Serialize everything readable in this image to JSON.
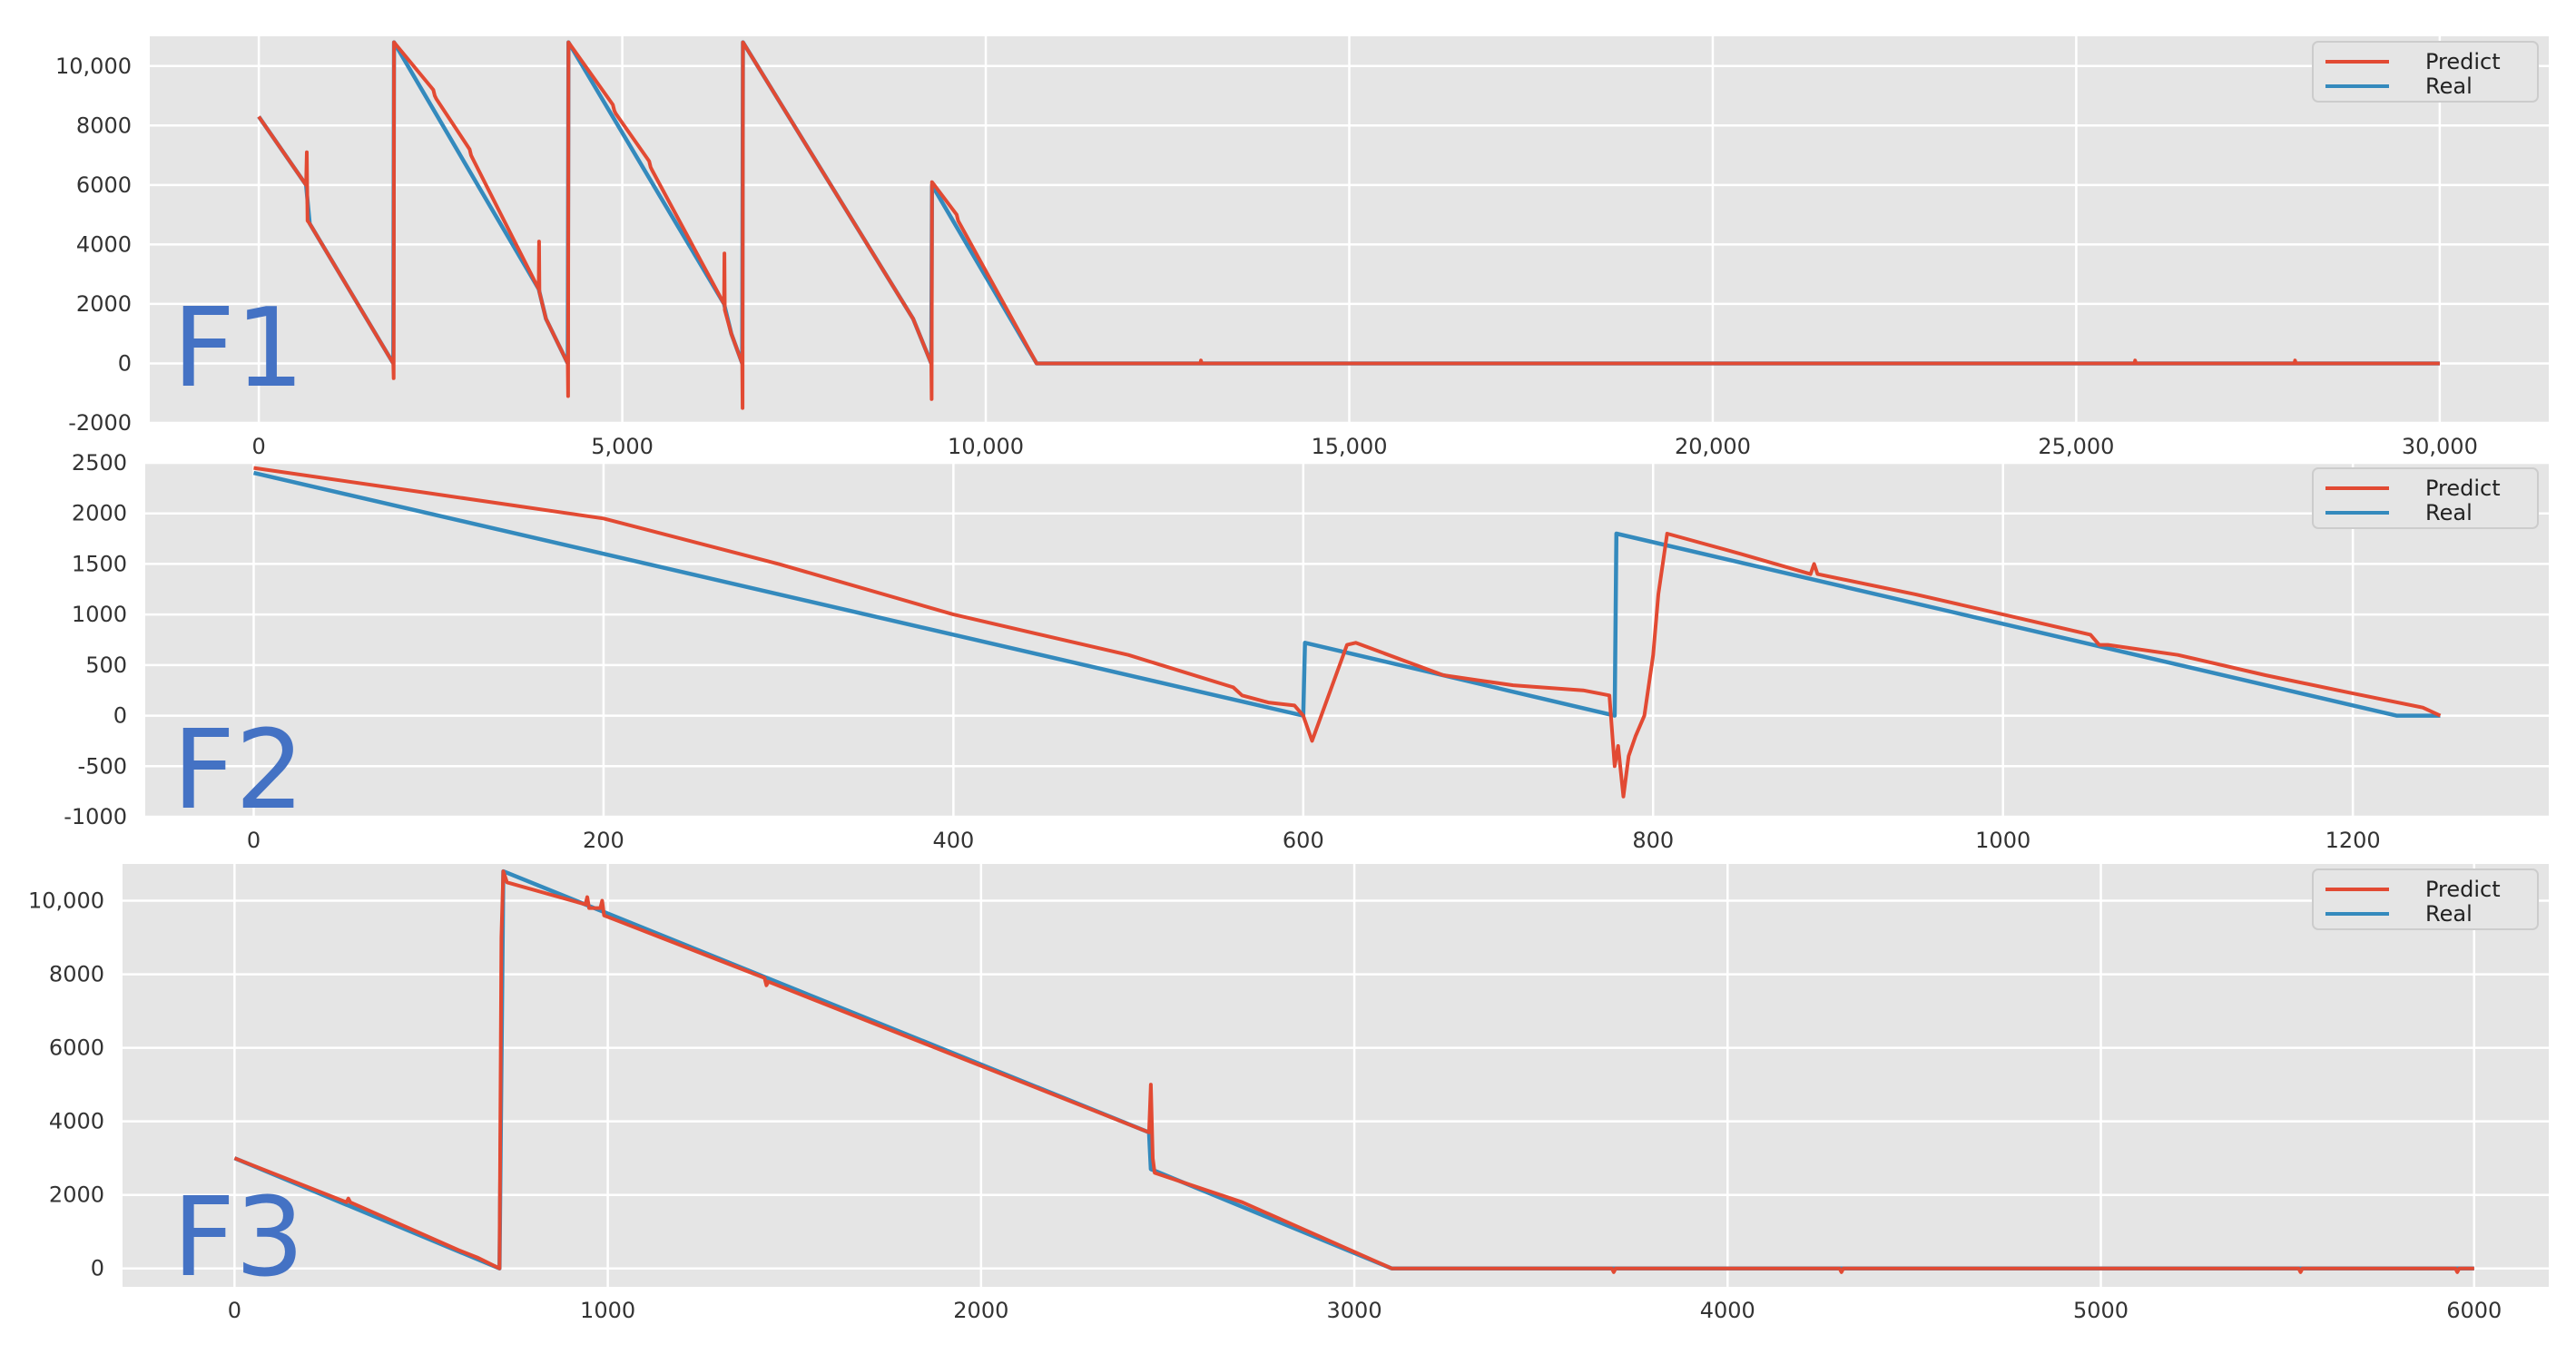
{
  "chart_data": [
    {
      "type": "line",
      "label": "F1",
      "legend": [
        "Predict",
        "Real"
      ],
      "legend_position": "top-right",
      "grid": true,
      "colors": {
        "Predict": "#e24a33",
        "Real": "#348abd",
        "background": "#e5e5e5",
        "grid": "#ffffff",
        "label": "#4472c4"
      },
      "xlim": [
        -1500,
        31500
      ],
      "ylim": [
        -2000,
        11000
      ],
      "xticks": [
        0,
        5000,
        10000,
        15000,
        20000,
        25000,
        30000
      ],
      "xtick_labels": [
        "0",
        "5,000",
        "10,000",
        "15,000",
        "20,000",
        "25,000",
        "30,000"
      ],
      "yticks": [
        -2000,
        0,
        2000,
        4000,
        6000,
        8000,
        10000
      ],
      "ytick_labels": [
        "-2000",
        "0",
        "2000",
        "4000",
        "6000",
        "8000",
        "10,000"
      ],
      "series": [
        {
          "name": "Real",
          "x": [
            0,
            650,
            700,
            1850,
            1860,
            3850,
            3950,
            4250,
            4260,
            6400,
            6500,
            6650,
            6660,
            9000,
            9250,
            9260,
            10700,
            30000
          ],
          "y": [
            8300,
            6000,
            4700,
            0,
            10800,
            2500,
            1500,
            0,
            10800,
            2000,
            1000,
            0,
            10800,
            1500,
            0,
            6000,
            0,
            0
          ]
        },
        {
          "name": "Predict",
          "x": [
            0,
            650,
            660,
            670,
            700,
            1850,
            1855,
            1860,
            2400,
            2420,
            2440,
            2900,
            2920,
            2940,
            3850,
            3855,
            3860,
            3950,
            4250,
            4255,
            4260,
            4870,
            4890,
            4910,
            5370,
            5390,
            5410,
            6400,
            6405,
            6410,
            6500,
            6650,
            6655,
            6660,
            9000,
            9250,
            9255,
            9260,
            9600,
            9620,
            10700,
            12950,
            12960,
            12970,
            25800,
            25810,
            25820,
            28000,
            28010,
            28020,
            30000
          ],
          "y": [
            8300,
            6000,
            7100,
            4800,
            4700,
            0,
            -500,
            10800,
            9200,
            9000,
            8900,
            7200,
            7000,
            6900,
            2500,
            4100,
            2400,
            1500,
            0,
            -1100,
            10800,
            8700,
            8500,
            8400,
            6800,
            6600,
            6500,
            2000,
            3700,
            1800,
            1000,
            0,
            -1500,
            10800,
            1500,
            0,
            -1200,
            6100,
            5000,
            4800,
            0,
            0,
            100,
            0,
            0,
            100,
            0,
            0,
            100,
            0,
            0
          ]
        }
      ]
    },
    {
      "type": "line",
      "label": "F2",
      "legend": [
        "Predict",
        "Real"
      ],
      "legend_position": "top-right",
      "grid": true,
      "colors": {
        "Predict": "#e24a33",
        "Real": "#348abd",
        "background": "#e5e5e5",
        "grid": "#ffffff",
        "label": "#4472c4"
      },
      "xlim": [
        -62,
        1312
      ],
      "ylim": [
        -1000,
        2500
      ],
      "xticks": [
        0,
        200,
        400,
        600,
        800,
        1000,
        1200
      ],
      "xtick_labels": [
        "0",
        "200",
        "400",
        "600",
        "800",
        "1000",
        "1200"
      ],
      "yticks": [
        -1000,
        -500,
        0,
        500,
        1000,
        1500,
        2000,
        2500
      ],
      "ytick_labels": [
        "-1000",
        "-500",
        "0",
        "500",
        "1000",
        "1500",
        "2000",
        "2500"
      ],
      "series": [
        {
          "name": "Real",
          "x": [
            0,
            600,
            601,
            778,
            779,
            1225,
            1250
          ],
          "y": [
            2400,
            0,
            720,
            0,
            1800,
            0,
            0
          ]
        },
        {
          "name": "Predict",
          "x": [
            0,
            100,
            200,
            300,
            400,
            500,
            560,
            565,
            580,
            595,
            600,
            605,
            625,
            630,
            680,
            700,
            720,
            760,
            775,
            778,
            780,
            783,
            786,
            790,
            795,
            800,
            803,
            808,
            850,
            890,
            892,
            894,
            950,
            1000,
            1050,
            1055,
            1060,
            1100,
            1150,
            1200,
            1240,
            1250
          ],
          "y": [
            2450,
            2200,
            1950,
            1500,
            1000,
            600,
            280,
            200,
            130,
            100,
            0,
            -250,
            700,
            720,
            400,
            350,
            300,
            250,
            200,
            -500,
            -300,
            -800,
            -400,
            -200,
            0,
            600,
            1200,
            1800,
            1600,
            1400,
            1500,
            1400,
            1200,
            1000,
            800,
            700,
            700,
            600,
            400,
            220,
            80,
            0
          ]
        }
      ]
    },
    {
      "type": "line",
      "label": "F3",
      "legend": [
        "Predict",
        "Real"
      ],
      "legend_position": "top-right",
      "grid": true,
      "colors": {
        "Predict": "#e24a33",
        "Real": "#348abd",
        "background": "#e5e5e5",
        "grid": "#ffffff",
        "label": "#4472c4"
      },
      "xlim": [
        -300,
        6200
      ],
      "ylim": [
        -500,
        11000
      ],
      "xticks": [
        0,
        1000,
        2000,
        3000,
        4000,
        5000,
        6000
      ],
      "xtick_labels": [
        "0",
        "1000",
        "2000",
        "3000",
        "4000",
        "5000",
        "6000"
      ],
      "yticks": [
        0,
        2000,
        4000,
        6000,
        8000,
        10000
      ],
      "ytick_labels": [
        "0",
        "2000",
        "4000",
        "6000",
        "8000",
        "10,000"
      ],
      "series": [
        {
          "name": "Real",
          "x": [
            0,
            710,
            720,
            2450,
            2455,
            3100,
            6000
          ],
          "y": [
            3000,
            0,
            10800,
            3700,
            2700,
            0,
            0
          ]
        },
        {
          "name": "Predict",
          "x": [
            0,
            300,
            305,
            310,
            600,
            650,
            690,
            710,
            715,
            720,
            730,
            940,
            945,
            950,
            980,
            985,
            990,
            1420,
            1425,
            1430,
            2450,
            2455,
            2460,
            2465,
            2700,
            3100,
            3690,
            3695,
            3700,
            4300,
            4305,
            4310,
            5530,
            5535,
            5540,
            5950,
            5955,
            5960,
            6000
          ],
          "y": [
            3000,
            1800,
            1900,
            1800,
            500,
            300,
            100,
            0,
            9000,
            10800,
            10500,
            9900,
            10100,
            9800,
            9800,
            10000,
            9600,
            7900,
            7700,
            7800,
            3700,
            5000,
            3000,
            2600,
            1800,
            0,
            0,
            -100,
            0,
            0,
            -100,
            0,
            0,
            -100,
            0,
            0,
            -100,
            0,
            0
          ]
        }
      ]
    }
  ]
}
